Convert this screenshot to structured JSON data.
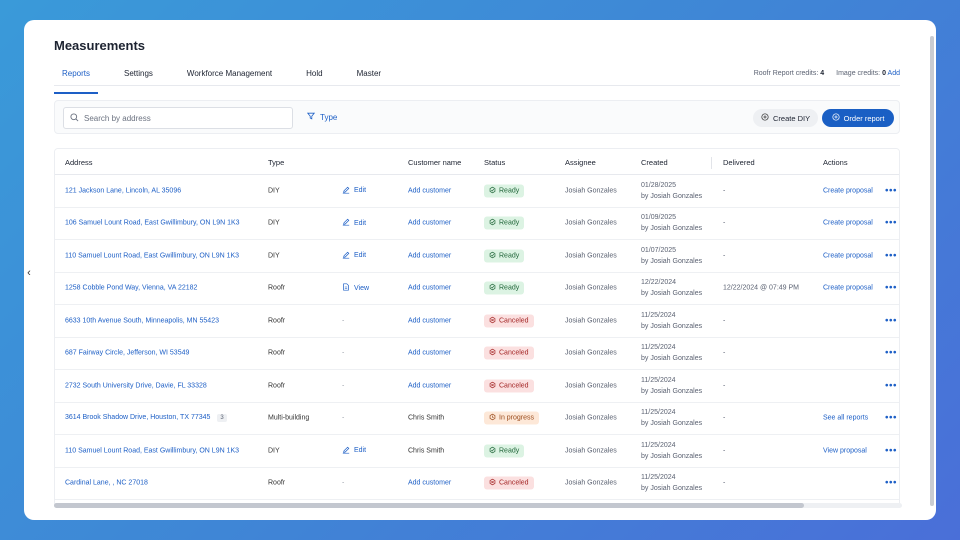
{
  "page": {
    "title": "Measurements"
  },
  "tabs": [
    {
      "label": "Reports",
      "active": true
    },
    {
      "label": "Settings"
    },
    {
      "label": "Workforce Management"
    },
    {
      "label": "Hold"
    },
    {
      "label": "Master"
    }
  ],
  "credits": {
    "report_label": "Roofr Report credits:",
    "report_value": "4",
    "image_label": "Image credits:",
    "image_value": "0",
    "add_label": "Add"
  },
  "toolbar": {
    "search_placeholder": "Search by address",
    "type_filter_label": "Type",
    "create_diy_label": "Create DIY",
    "order_report_label": "Order report"
  },
  "table": {
    "columns": {
      "address": "Address",
      "type": "Type",
      "customer": "Customer name",
      "status": "Status",
      "assignee": "Assignee",
      "created": "Created",
      "delivered": "Delivered",
      "actions": "Actions"
    },
    "rows": [
      {
        "address": "121 Jackson Lane, Lincoln, AL 35096",
        "count": "",
        "type": "DIY",
        "link": "Edit",
        "link_icon": "edit-icon",
        "customer": "Add customer",
        "customer_is_link": true,
        "status": "Ready",
        "status_kind": "ready",
        "assignee": "Josiah Gonzales",
        "created_date": "01/28/2025",
        "created_by": "by Josiah Gonzales",
        "delivered": "-",
        "action": "Create proposal",
        "more": "•••"
      },
      {
        "address": "106 Samuel Lount Road, East Gwillimbury, ON L9N 1K3",
        "count": "",
        "type": "DIY",
        "link": "Edit",
        "link_icon": "edit-icon",
        "customer": "Add customer",
        "customer_is_link": true,
        "status": "Ready",
        "status_kind": "ready",
        "assignee": "Josiah Gonzales",
        "created_date": "01/09/2025",
        "created_by": "by Josiah Gonzales",
        "delivered": "-",
        "action": "Create proposal",
        "more": "•••"
      },
      {
        "address": "110 Samuel Lount Road, East Gwillimbury, ON L9N 1K3",
        "count": "",
        "type": "DIY",
        "link": "Edit",
        "link_icon": "edit-icon",
        "customer": "Add customer",
        "customer_is_link": true,
        "status": "Ready",
        "status_kind": "ready",
        "assignee": "Josiah Gonzales",
        "created_date": "01/07/2025",
        "created_by": "by Josiah Gonzales",
        "delivered": "-",
        "action": "Create proposal",
        "more": "•••"
      },
      {
        "address": "1258 Cobble Pond Way, Vienna, VA 22182",
        "count": "",
        "type": "Roofr",
        "link": "View",
        "link_icon": "document-icon",
        "customer": "Add customer",
        "customer_is_link": true,
        "status": "Ready",
        "status_kind": "ready",
        "assignee": "Josiah Gonzales",
        "created_date": "12/22/2024",
        "created_by": "by Josiah Gonzales",
        "delivered": "12/22/2024 @ 07:49 PM",
        "action": "Create proposal",
        "more": "•••"
      },
      {
        "address": "6633 10th Avenue South, Minneapolis, MN 55423",
        "count": "",
        "type": "Roofr",
        "link": "-",
        "link_icon": "",
        "customer": "Add customer",
        "customer_is_link": true,
        "status": "Canceled",
        "status_kind": "canceled",
        "assignee": "Josiah Gonzales",
        "created_date": "11/25/2024",
        "created_by": "by Josiah Gonzales",
        "delivered": "-",
        "action": "",
        "more": "•••"
      },
      {
        "address": "687 Fairway Circle, Jefferson, WI 53549",
        "count": "",
        "type": "Roofr",
        "link": "-",
        "link_icon": "",
        "customer": "Add customer",
        "customer_is_link": true,
        "status": "Canceled",
        "status_kind": "canceled",
        "assignee": "Josiah Gonzales",
        "created_date": "11/25/2024",
        "created_by": "by Josiah Gonzales",
        "delivered": "-",
        "action": "",
        "more": "•••"
      },
      {
        "address": "2732 South University Drive, Davie, FL 33328",
        "count": "",
        "type": "Roofr",
        "link": "-",
        "link_icon": "",
        "customer": "Add customer",
        "customer_is_link": true,
        "status": "Canceled",
        "status_kind": "canceled",
        "assignee": "Josiah Gonzales",
        "created_date": "11/25/2024",
        "created_by": "by Josiah Gonzales",
        "delivered": "-",
        "action": "",
        "more": "•••"
      },
      {
        "address": "3614 Brook Shadow Drive, Houston, TX 77345",
        "count": "3",
        "type": "Multi-building",
        "link": "-",
        "link_icon": "",
        "customer": "Chris Smith",
        "customer_is_link": false,
        "status": "In progress",
        "status_kind": "progress",
        "assignee": "Josiah Gonzales",
        "created_date": "11/25/2024",
        "created_by": "by Josiah Gonzales",
        "delivered": "-",
        "action": "See all reports",
        "more": "•••"
      },
      {
        "address": "110 Samuel Lount Road, East Gwillimbury, ON L9N 1K3",
        "count": "",
        "type": "DIY",
        "link": "Edit",
        "link_icon": "edit-icon",
        "customer": "Chris Smith",
        "customer_is_link": false,
        "status": "Ready",
        "status_kind": "ready",
        "assignee": "Josiah Gonzales",
        "created_date": "11/25/2024",
        "created_by": "by Josiah Gonzales",
        "delivered": "-",
        "action": "View proposal",
        "more": "•••"
      },
      {
        "address": "Cardinal Lane, , NC 27018",
        "count": "",
        "type": "Roofr",
        "link": "-",
        "link_icon": "",
        "customer": "Add customer",
        "customer_is_link": true,
        "status": "Canceled",
        "status_kind": "canceled",
        "assignee": "Josiah Gonzales",
        "created_date": "11/25/2024",
        "created_by": "by Josiah Gonzales",
        "delivered": "-",
        "action": "",
        "more": "•••"
      }
    ]
  },
  "icons": {
    "collapse": "chevron-left-icon",
    "search": "search-icon",
    "filter": "filter-icon",
    "create_diy": "plus-circle-icon",
    "order_report": "plus-circle-icon"
  }
}
